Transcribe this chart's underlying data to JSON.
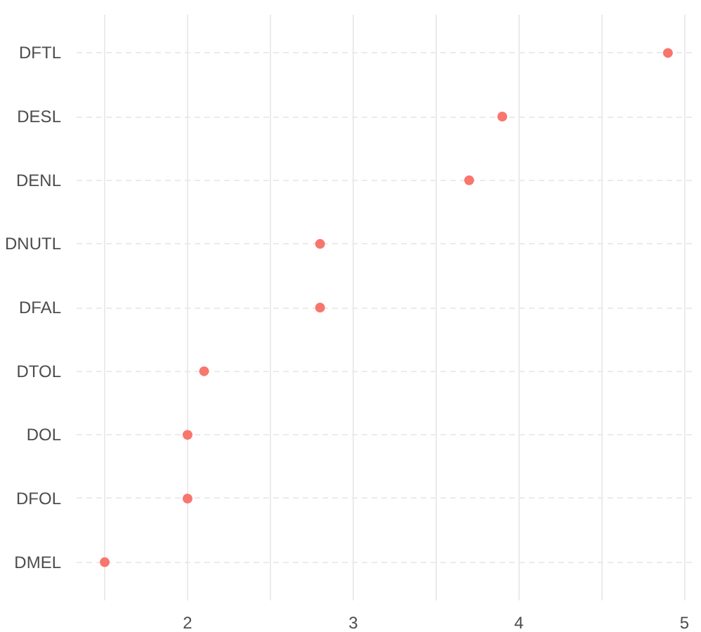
{
  "chart_data": {
    "type": "scatter",
    "orientation": "horizontal",
    "categories": [
      "DFTL",
      "DESL",
      "DENL",
      "DNUTL",
      "DFAL",
      "DTOL",
      "DOL",
      "DFOL",
      "DMEL"
    ],
    "values": [
      4.9,
      3.9,
      3.7,
      2.8,
      2.8,
      2.1,
      2.0,
      2.0,
      1.5
    ],
    "color": "#f8766d",
    "marker": "circle",
    "xlim": [
      1.33,
      5.07
    ],
    "xticks": [
      {
        "value": 1.5,
        "label": null
      },
      2,
      {
        "value": 2.5,
        "label": null
      },
      3,
      {
        "value": 3.5,
        "label": null
      },
      4,
      {
        "value": 4.5,
        "label": null
      },
      5
    ],
    "grid": true
  }
}
